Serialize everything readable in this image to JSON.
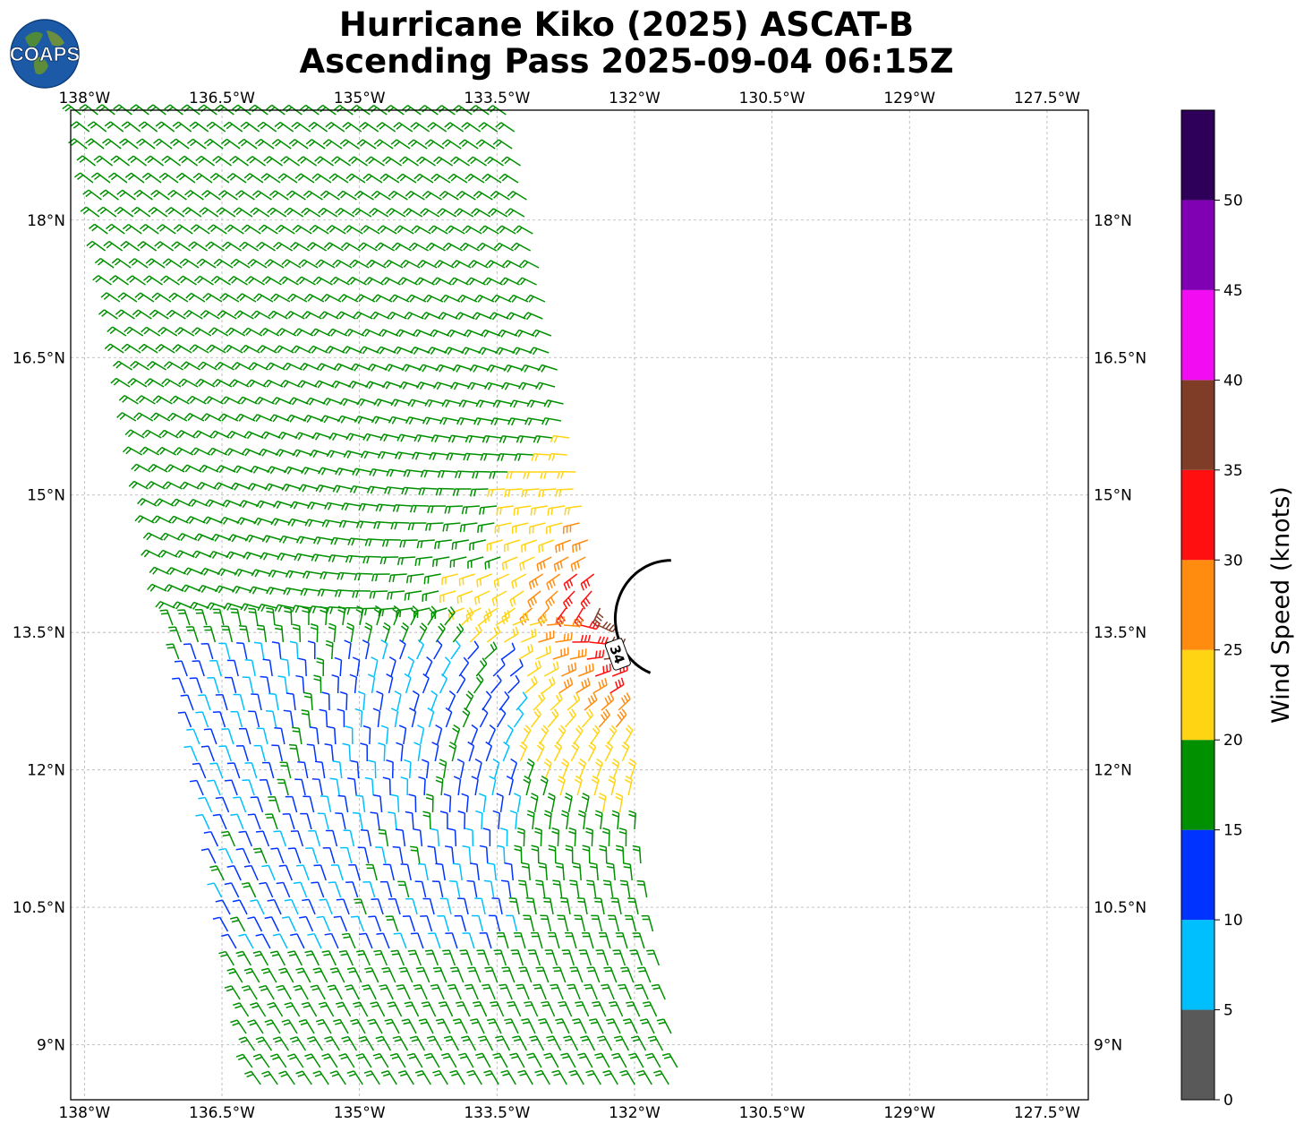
{
  "title": {
    "line1": "Hurricane Kiko (2025) ASCAT-B",
    "line2": "Ascending Pass 2025-09-04 06:15Z"
  },
  "logo": {
    "text": "COAPS",
    "icon": "globe-icon"
  },
  "map": {
    "lon_range": [
      -138.15,
      -127.05
    ],
    "lat_range": [
      8.4,
      19.2
    ],
    "lon_ticks": [
      -138,
      -136.5,
      -135,
      -133.5,
      -132,
      -130.5,
      -129,
      -127.5
    ],
    "lon_tick_labels": [
      "138°W",
      "136.5°W",
      "135°W",
      "133.5°W",
      "132°W",
      "130.5°W",
      "129°W",
      "127.5°W"
    ],
    "lat_ticks": [
      18,
      16.5,
      15,
      13.5,
      12,
      10.5,
      9
    ],
    "lat_tick_labels": [
      "18°N",
      "16.5°N",
      "15°N",
      "13.5°N",
      "12°N",
      "10.5°N",
      "9°N"
    ],
    "grid": true,
    "storm_center": {
      "lon": -131.8,
      "lat": 13.65
    },
    "contour_label": "34"
  },
  "colorbar": {
    "label": "Wind Speed (knots)",
    "ticks": [
      "0",
      "5",
      "10",
      "15",
      "20",
      "25",
      "30",
      "35",
      "40",
      "45",
      "50"
    ],
    "colors": [
      "#595959",
      "#00bfff",
      "#0033ff",
      "#009000",
      "#ffd412",
      "#ff8c0f",
      "#ff0f0f",
      "#7f3d28",
      "#f20cf2",
      "#8000b3",
      "#2e0059"
    ]
  }
}
